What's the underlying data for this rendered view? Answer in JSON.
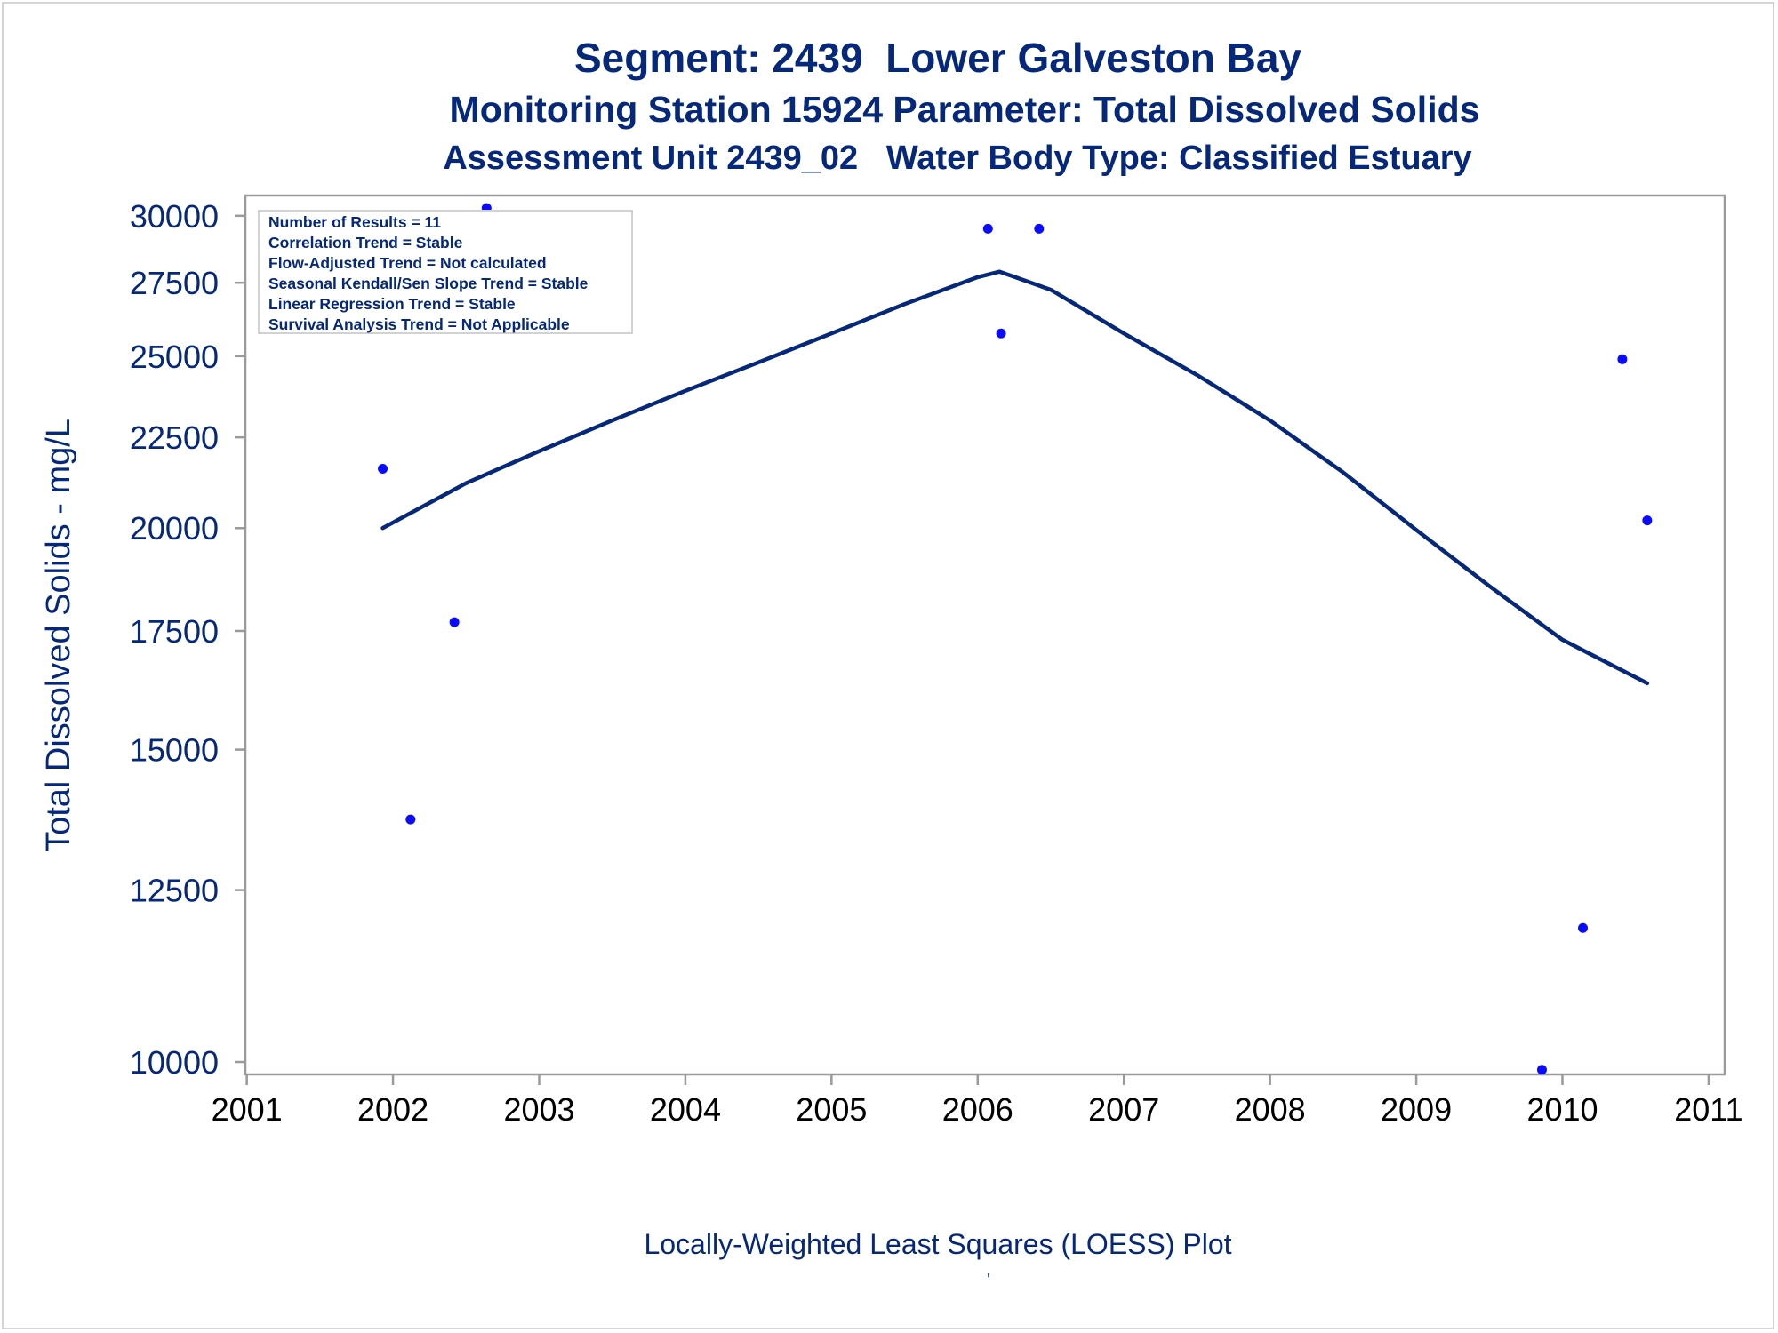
{
  "titles": {
    "line1": "Segment: 2439  Lower Galveston Bay",
    "line2": "Monitoring Station 15924 Parameter: Total Dissolved Solids",
    "line3": "Assessment Unit 2439_02   Water Body Type: Classified Estuary"
  },
  "stats": [
    "Number of Results = 11",
    "Correlation Trend = Stable",
    "Flow-Adjusted Trend = Not calculated",
    "Seasonal Kendall/Sen Slope Trend = Stable",
    "Linear Regression Trend = Stable",
    "Survival Analysis Trend = Not Applicable"
  ],
  "x_caption": "Locally-Weighted Least Squares (LOESS) Plot",
  "footnote": "'",
  "colors": {
    "title": "#06287a",
    "axis_text": "#06287a",
    "points": "#0a0aff",
    "loess_line": "#06287a",
    "frame": "#9a9a9a"
  },
  "chart_data": {
    "type": "scatter",
    "ylabel": "Total Dissolved Solids - mg/L",
    "xlabel": "",
    "y_scale": "log",
    "xlim": [
      2000.99,
      2011.11
    ],
    "ylim": [
      9840,
      30800
    ],
    "x_ticks": [
      2001,
      2002,
      2003,
      2004,
      2005,
      2006,
      2007,
      2008,
      2009,
      2010,
      2011
    ],
    "x_tick_labels": [
      "2001",
      "2002",
      "2003",
      "2004",
      "2005",
      "2006",
      "2007",
      "2008",
      "2009",
      "2010",
      "2011"
    ],
    "y_ticks": [
      10000,
      12500,
      15000,
      17500,
      20000,
      22500,
      25000,
      27500,
      30000
    ],
    "y_tick_labels": [
      "10000",
      "12500",
      "15000",
      "17500",
      "20000",
      "22500",
      "25000",
      "27500",
      "30000"
    ],
    "grid": false,
    "legend": "none",
    "series": [
      {
        "type": "scatter",
        "x": [
          2001.93,
          2002.12,
          2002.42,
          2002.64,
          2006.07,
          2006.16,
          2006.42,
          2009.86,
          2010.14,
          2010.41,
          2010.58
        ],
        "y": [
          21600,
          13700,
          17700,
          30300,
          29500,
          25750,
          29500,
          9900,
          11900,
          24900,
          20200
        ]
      },
      {
        "type": "line",
        "x": [
          2001.93,
          2002.5,
          2003.0,
          2003.5,
          2004.0,
          2004.5,
          2005.0,
          2005.5,
          2006.0,
          2006.15,
          2006.5,
          2007.0,
          2007.5,
          2008.0,
          2008.5,
          2009.0,
          2009.5,
          2010.0,
          2010.58
        ],
        "y": [
          20000,
          21200,
          22100,
          23000,
          23900,
          24800,
          25750,
          26750,
          27700,
          27900,
          27250,
          25750,
          24400,
          23000,
          21500,
          19950,
          18550,
          17300,
          16350
        ]
      }
    ]
  }
}
